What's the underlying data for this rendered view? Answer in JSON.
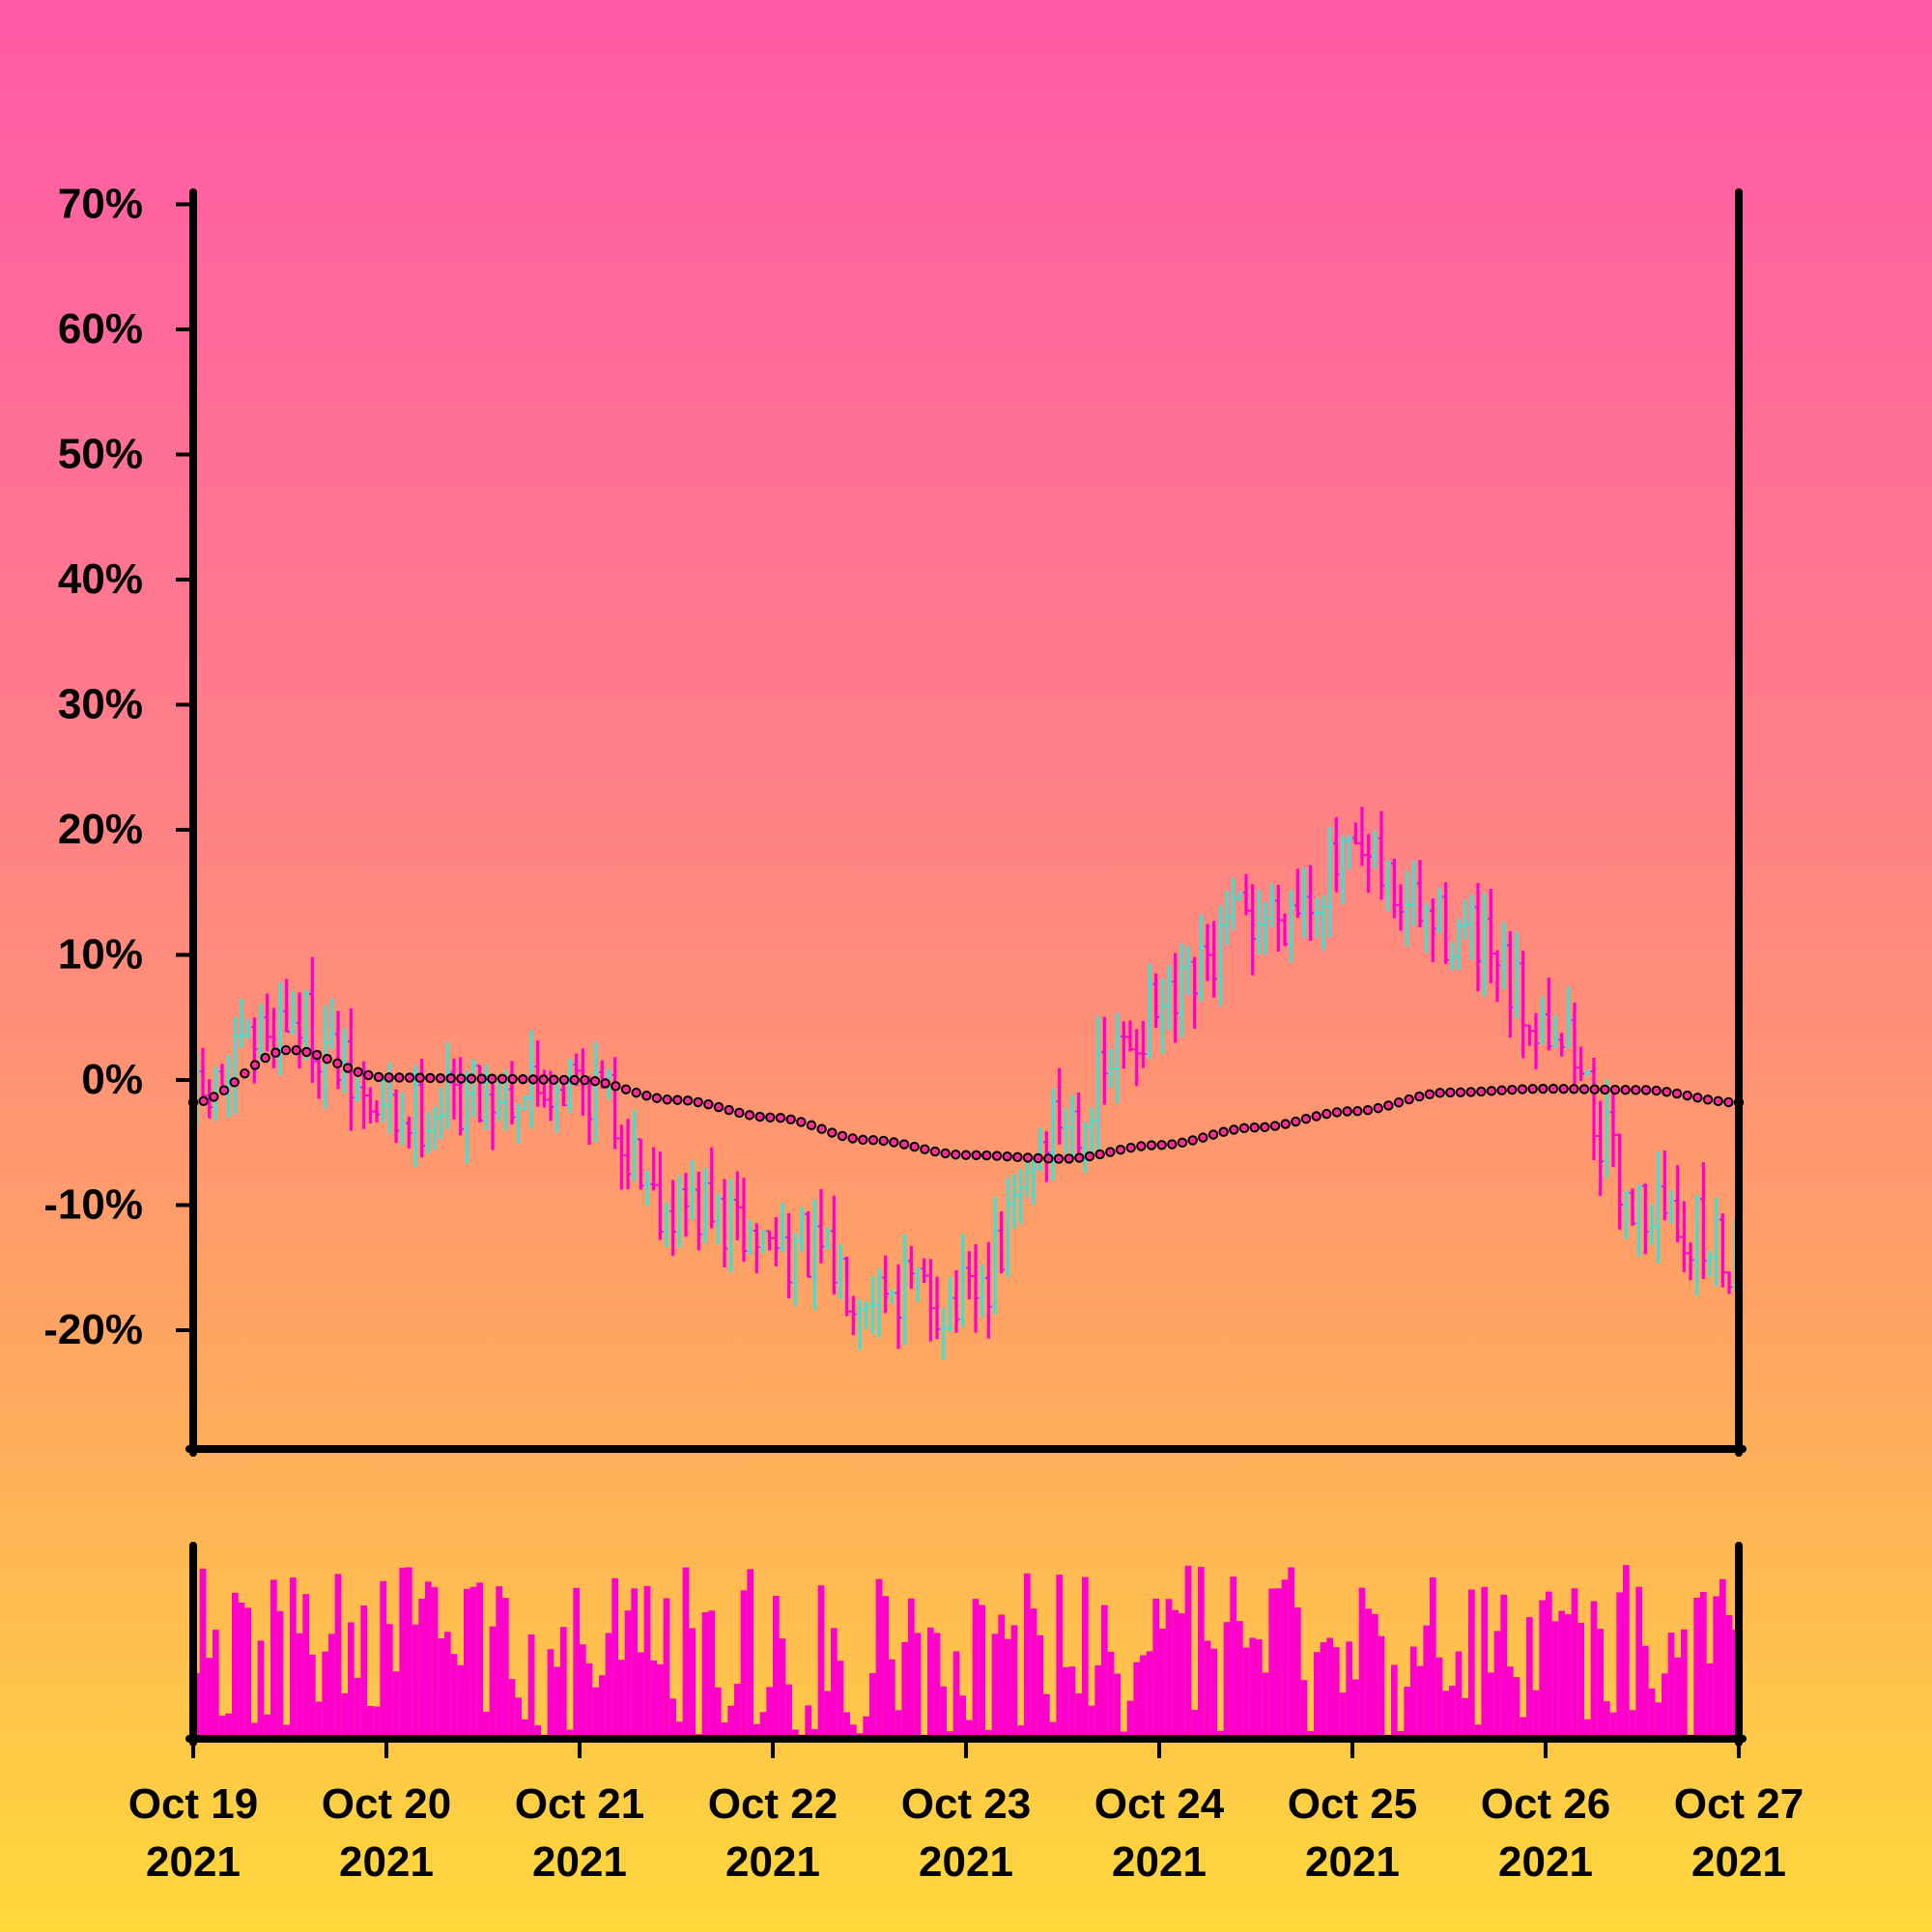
{
  "chart_data": {
    "type": "ohlc",
    "title": "",
    "xlabel": "",
    "ylabel": "",
    "y_axis": {
      "unit": "%",
      "ticks": [
        "70%",
        "60%",
        "50%",
        "40%",
        "30%",
        "20%",
        "10%",
        "0%",
        "-10%",
        "-20%"
      ],
      "tick_values": [
        70,
        60,
        50,
        40,
        30,
        20,
        10,
        0,
        -10,
        -20
      ],
      "ylim": [
        -29.5,
        70.5
      ]
    },
    "x_axis": {
      "ticks": [
        {
          "date": "Oct 19",
          "year": "2021"
        },
        {
          "date": "Oct 20",
          "year": "2021"
        },
        {
          "date": "Oct 21",
          "year": "2021"
        },
        {
          "date": "Oct 22",
          "year": "2021"
        },
        {
          "date": "Oct 23",
          "year": "2021"
        },
        {
          "date": "Oct 24",
          "year": "2021"
        },
        {
          "date": "Oct 25",
          "year": "2021"
        },
        {
          "date": "Oct 26",
          "year": "2021"
        },
        {
          "date": "Oct 27",
          "year": "2021"
        }
      ],
      "xlim": [
        "2021-10-19",
        "2021-10-27"
      ]
    },
    "grid": false,
    "legend": "none",
    "colors": {
      "up": "#40e0d0",
      "down": "#ff00cc",
      "volume": "#ff00cc",
      "moving_average_fill": "#ff2d9a",
      "axis": "#000000"
    },
    "price_keypoints": {
      "x": [
        "2021-10-19",
        "2021-10-19 12:00",
        "2021-10-20",
        "2021-10-20 12:00",
        "2021-10-21",
        "2021-10-21 12:00",
        "2021-10-22",
        "2021-10-22 12:00",
        "2021-10-23",
        "2021-10-23 12:00",
        "2021-10-24",
        "2021-10-24 12:00",
        "2021-10-25",
        "2021-10-25 12:00",
        "2021-10-26",
        "2021-10-26 12:00",
        "2021-10-27"
      ],
      "close": [
        -2,
        5,
        -3,
        -1,
        0,
        -10,
        -13,
        -16,
        -18,
        -3,
        5,
        13,
        17,
        12,
        5,
        -10,
        -14
      ]
    },
    "moving_average_keypoints": {
      "x": [
        "2021-10-19",
        "2021-10-19 12:00",
        "2021-10-20",
        "2021-10-20 12:00",
        "2021-10-21",
        "2021-10-21 12:00",
        "2021-10-22",
        "2021-10-22 12:00",
        "2021-10-23",
        "2021-10-23 12:00",
        "2021-10-24",
        "2021-10-24 12:00",
        "2021-10-25",
        "2021-10-25 12:00",
        "2021-10-26",
        "2021-10-26 12:00",
        "2021-10-27"
      ],
      "y": [
        -1.8,
        2.4,
        0.2,
        0.1,
        0.0,
        -1.6,
        -3.0,
        -4.8,
        -6.0,
        -6.3,
        -5.2,
        -3.8,
        -2.5,
        -1.0,
        -0.7,
        -0.8,
        -1.8
      ]
    },
    "volume": {
      "range": [
        0,
        14
      ],
      "note_bars": 240
    }
  }
}
